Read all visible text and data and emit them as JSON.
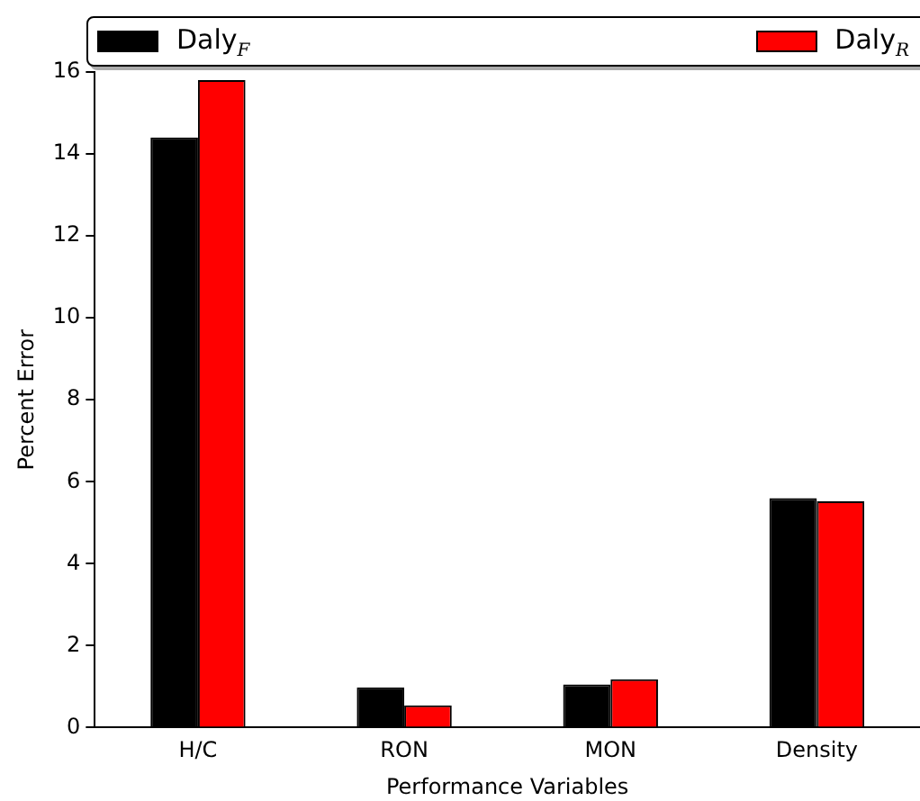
{
  "chart_data": {
    "type": "bar",
    "xlabel": "Performance Variables",
    "ylabel": "Percent Error",
    "categories": [
      "H/C",
      "RON",
      "MON",
      "Density"
    ],
    "series": [
      {
        "name": "Daly$_{F}$",
        "color": "#000000",
        "values": [
          14.4,
          0.98,
          1.05,
          5.6
        ]
      },
      {
        "name": "Daly$_{R}$",
        "color": "#ff0000",
        "values": [
          15.8,
          0.54,
          1.18,
          5.52
        ]
      }
    ],
    "ylim": [
      0,
      16
    ],
    "yticks": [
      0,
      2,
      4,
      6,
      8,
      10,
      12,
      14,
      16
    ],
    "grid": false,
    "legend": "top"
  }
}
